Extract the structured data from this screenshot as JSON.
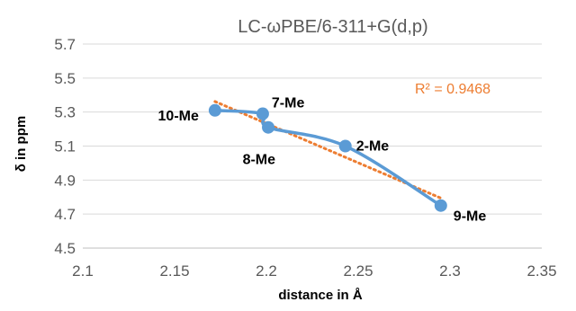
{
  "chart_data": {
    "type": "scatter",
    "title": "LC-ωPBE/6-311+G(d,p)",
    "xlabel": "distance in Å",
    "ylabel": "δ in ppm",
    "xlim": [
      2.1,
      2.35
    ],
    "ylim": [
      4.5,
      5.7
    ],
    "x_ticks": [
      "2.1",
      "2.15",
      "2.2",
      "2.25",
      "2.3",
      "2.35"
    ],
    "y_ticks": [
      "4.5",
      "4.7",
      "4.9",
      "5.1",
      "5.3",
      "5.5",
      "5.7"
    ],
    "grid": true,
    "points": [
      {
        "label": "10-Me",
        "x": 2.172,
        "y": 5.31
      },
      {
        "label": "7-Me",
        "x": 2.198,
        "y": 5.29
      },
      {
        "label": "8-Me",
        "x": 2.201,
        "y": 5.21
      },
      {
        "label": "2-Me",
        "x": 2.243,
        "y": 5.1
      },
      {
        "label": "9-Me",
        "x": 2.295,
        "y": 4.75
      }
    ],
    "trendline": {
      "type": "linear",
      "r2_label": "R² = 0.9468"
    },
    "colors": {
      "series": "#5B9BD5",
      "trendline": "#ED7D31"
    }
  }
}
